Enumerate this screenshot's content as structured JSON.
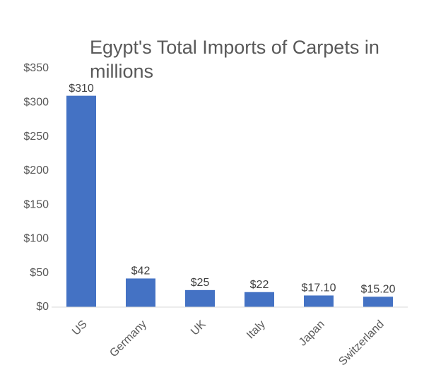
{
  "chart_data": {
    "type": "bar",
    "title": "Egypt's Total Imports of Carpets in millions",
    "categories": [
      "US",
      "Germany",
      "UK",
      "Italy",
      "Japan",
      "Switzerland"
    ],
    "values": [
      310,
      42,
      25,
      22,
      17.1,
      15.2
    ],
    "value_labels": [
      "$310",
      "$42",
      "$25",
      "$22",
      "$17.10",
      "$15.20"
    ],
    "color": "#4472c4",
    "ylim": [
      0,
      350
    ],
    "yticks": [
      {
        "value": 0,
        "label": "$0"
      },
      {
        "value": 50,
        "label": "$50"
      },
      {
        "value": 100,
        "label": "$100"
      },
      {
        "value": 150,
        "label": "$150"
      },
      {
        "value": 200,
        "label": "$200"
      },
      {
        "value": 250,
        "label": "$250"
      },
      {
        "value": 300,
        "label": "$300"
      },
      {
        "value": 350,
        "label": "$350"
      }
    ],
    "grid": false
  }
}
